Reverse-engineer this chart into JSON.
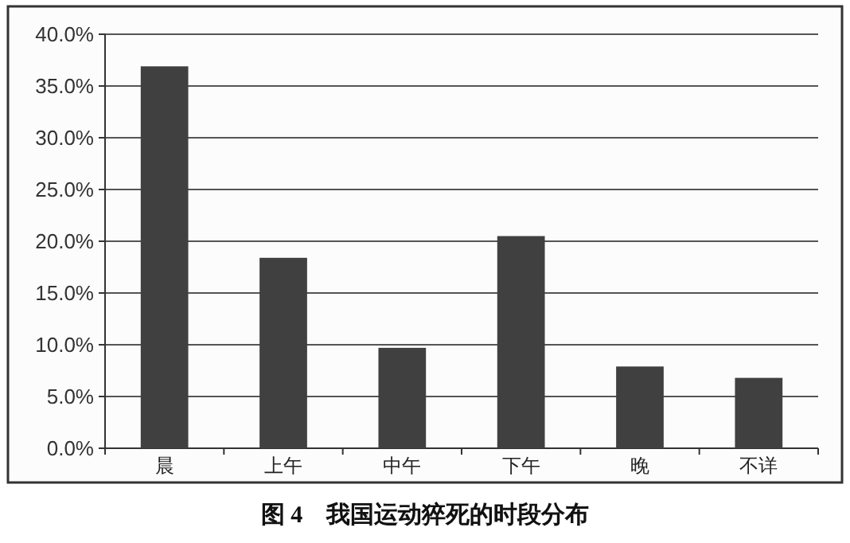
{
  "chart_data": {
    "type": "bar",
    "title": "图 4　我国运动猝死的时段分布",
    "categories": [
      "晨",
      "上午",
      "中午",
      "下午",
      "晚",
      "不详"
    ],
    "values": [
      36.9,
      18.4,
      9.7,
      20.5,
      7.9,
      6.8
    ],
    "color": "#404040",
    "ylim": [
      0,
      40
    ],
    "yticks": [
      {
        "value": 0,
        "label": "0.0%"
      },
      {
        "value": 5,
        "label": "5.0%"
      },
      {
        "value": 10,
        "label": "10.0%"
      },
      {
        "value": 15,
        "label": "15.0%"
      },
      {
        "value": 20,
        "label": "20.0%"
      },
      {
        "value": 25,
        "label": "25.0%"
      },
      {
        "value": 30,
        "label": "30.0%"
      },
      {
        "value": 35,
        "label": "35.0%"
      },
      {
        "value": 40,
        "label": "40.0%"
      }
    ],
    "grid": "y"
  }
}
